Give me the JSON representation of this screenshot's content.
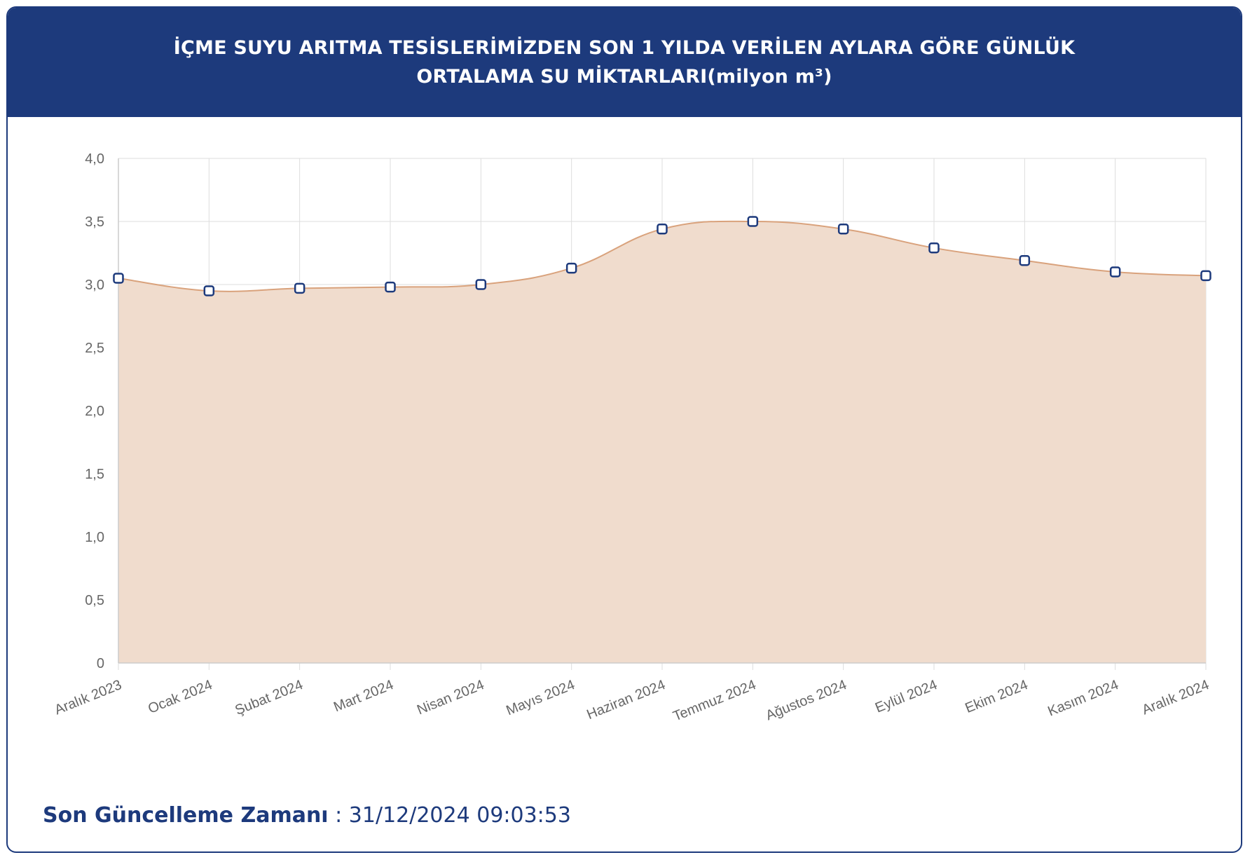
{
  "header": {
    "title": "İÇME SUYU ARITMA TESİSLERİMİZDEN SON 1 YILDA VERİLEN AYLARA GÖRE GÜNLÜK ORTALAMA SU MİKTARLARI(milyon m³)"
  },
  "footer": {
    "label": "Son Güncelleme Zamanı",
    "separator": " : ",
    "value": "31/12/2024 09:03:53"
  },
  "colors": {
    "header_bg": "#1d3a7c",
    "area_fill": "#f0dccd",
    "line": "#d9a27c",
    "point_border": "#1d3a7c",
    "grid": "#dddddd"
  },
  "chart_data": {
    "type": "area",
    "categories": [
      "Aralık 2023",
      "Ocak 2024",
      "Şubat 2024",
      "Mart 2024",
      "Nisan 2024",
      "Mayıs 2024",
      "Haziran 2024",
      "Temmuz 2024",
      "Ağustos 2024",
      "Eylül 2024",
      "Ekim 2024",
      "Kasım 2024",
      "Aralık 2024"
    ],
    "values": [
      3.05,
      2.95,
      2.97,
      2.98,
      3.0,
      3.13,
      3.44,
      3.5,
      3.44,
      3.29,
      3.19,
      3.1,
      3.07
    ],
    "ylim": [
      0,
      4
    ],
    "yticks": [
      "0",
      "0,5",
      "1,0",
      "1,5",
      "2,0",
      "2,5",
      "3,0",
      "3,5",
      "4,0"
    ],
    "grid": true,
    "smooth": true
  }
}
